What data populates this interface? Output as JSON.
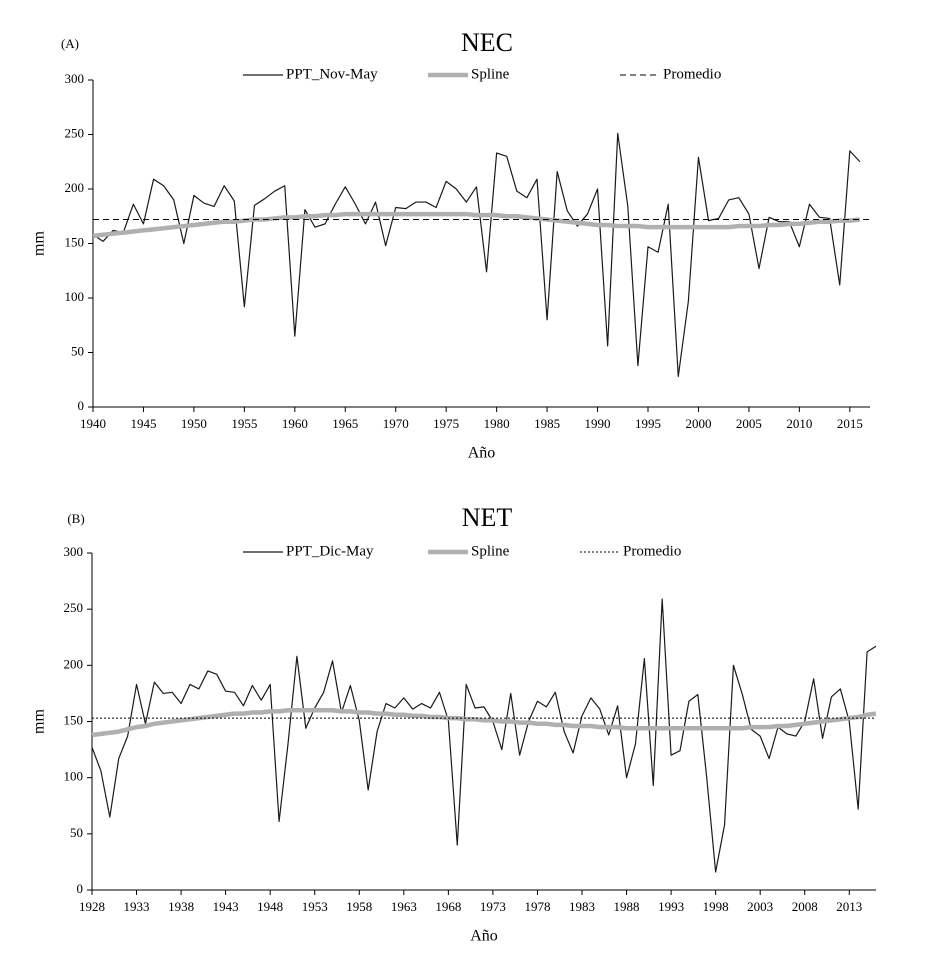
{
  "chart_data": [
    {
      "type": "line",
      "panel_label": "(A)",
      "title": "NEC",
      "xlabel": "Año",
      "ylabel": "mm",
      "x": [
        1940,
        1941,
        1942,
        1943,
        1944,
        1945,
        1946,
        1947,
        1948,
        1949,
        1950,
        1951,
        1952,
        1953,
        1954,
        1955,
        1956,
        1957,
        1958,
        1959,
        1960,
        1961,
        1962,
        1963,
        1964,
        1965,
        1966,
        1967,
        1968,
        1969,
        1970,
        1971,
        1972,
        1973,
        1974,
        1975,
        1976,
        1977,
        1978,
        1979,
        1980,
        1981,
        1982,
        1983,
        1984,
        1985,
        1986,
        1987,
        1988,
        1989,
        1990,
        1991,
        1992,
        1993,
        1994,
        1995,
        1996,
        1997,
        1998,
        1999,
        2000,
        2001,
        2002,
        2003,
        2004,
        2005,
        2006,
        2007,
        2008,
        2009,
        2010,
        2011,
        2012,
        2013,
        2014,
        2015,
        2016
      ],
      "series": [
        {
          "name": "PPT_Nov-May",
          "color": "#1a1a1a",
          "values": [
            158,
            152,
            162,
            160,
            186,
            168,
            209,
            203,
            190,
            150,
            194,
            187,
            184,
            203,
            189,
            92,
            185,
            191,
            198,
            203,
            65,
            181,
            165,
            168,
            186,
            202,
            186,
            168,
            188,
            148,
            183,
            182,
            188,
            188,
            183,
            207,
            200,
            188,
            202,
            124,
            233,
            230,
            198,
            192,
            209,
            80,
            216,
            180,
            166,
            177,
            200,
            56,
            251,
            184,
            38,
            147,
            142,
            186,
            28,
            97,
            229,
            171,
            173,
            190,
            192,
            177,
            127,
            174,
            170,
            170,
            147,
            186,
            174,
            173,
            112,
            235,
            225
          ]
        },
        {
          "name": "Spline",
          "color": "#b0b0b0",
          "values": [
            157,
            158,
            159,
            160,
            161,
            162,
            163,
            164,
            165,
            166,
            167,
            168,
            169,
            170,
            170,
            171,
            172,
            172,
            173,
            174,
            174,
            175,
            175,
            176,
            176,
            177,
            177,
            177,
            177,
            177,
            177,
            177,
            177,
            177,
            177,
            177,
            177,
            177,
            176,
            176,
            176,
            175,
            175,
            174,
            173,
            172,
            171,
            170,
            169,
            168,
            167,
            167,
            166,
            166,
            166,
            165,
            165,
            165,
            165,
            165,
            165,
            165,
            165,
            165,
            166,
            166,
            166,
            167,
            167,
            168,
            168,
            169,
            170,
            170,
            171,
            171,
            172
          ]
        },
        {
          "name": "Promedio",
          "color": "#000000",
          "dash": "dashed",
          "value": 172
        }
      ],
      "xlim": [
        1940,
        2017
      ],
      "xticks": [
        1940,
        1945,
        1950,
        1955,
        1960,
        1965,
        1970,
        1975,
        1980,
        1985,
        1990,
        1995,
        2000,
        2005,
        2010,
        2015
      ],
      "ylim": [
        0,
        300
      ],
      "yticks": [
        0,
        50,
        100,
        150,
        200,
        250,
        300
      ],
      "grid": false
    },
    {
      "type": "line",
      "panel_label": "(B)",
      "title": "NET",
      "xlabel": "Año",
      "ylabel": "mm",
      "x": [
        1928,
        1929,
        1930,
        1931,
        1932,
        1933,
        1934,
        1935,
        1936,
        1937,
        1938,
        1939,
        1940,
        1941,
        1942,
        1943,
        1944,
        1945,
        1946,
        1947,
        1948,
        1949,
        1950,
        1951,
        1952,
        1953,
        1954,
        1955,
        1956,
        1957,
        1958,
        1959,
        1960,
        1961,
        1962,
        1963,
        1964,
        1965,
        1966,
        1967,
        1968,
        1969,
        1970,
        1971,
        1972,
        1973,
        1974,
        1975,
        1976,
        1977,
        1978,
        1979,
        1980,
        1981,
        1982,
        1983,
        1984,
        1985,
        1986,
        1987,
        1988,
        1989,
        1990,
        1991,
        1992,
        1993,
        1994,
        1995,
        1996,
        1997,
        1998,
        1999,
        2000,
        2001,
        2002,
        2003,
        2004,
        2005,
        2006,
        2007,
        2008,
        2009,
        2010,
        2011,
        2012,
        2013,
        2014,
        2015,
        2016
      ],
      "series": [
        {
          "name": "PPT_Dic-May",
          "color": "#1a1a1a",
          "values": [
            127,
            106,
            65,
            117,
            137,
            183,
            148,
            185,
            175,
            176,
            166,
            183,
            179,
            195,
            192,
            177,
            176,
            164,
            182,
            169,
            183,
            61,
            130,
            208,
            144,
            162,
            176,
            204,
            158,
            182,
            151,
            89,
            141,
            166,
            162,
            171,
            161,
            166,
            162,
            176,
            151,
            40,
            183,
            162,
            163,
            150,
            125,
            175,
            120,
            150,
            168,
            163,
            176,
            141,
            122,
            155,
            171,
            161,
            138,
            164,
            100,
            130,
            206,
            93,
            259,
            120,
            124,
            168,
            174,
            100,
            16,
            58,
            200,
            174,
            143,
            137,
            117,
            145,
            139,
            137,
            150,
            188,
            135,
            172,
            179,
            150,
            72,
            212,
            217
          ]
        },
        {
          "name": "Spline",
          "color": "#b0b0b0",
          "values": [
            138,
            139,
            140,
            141,
            143,
            145,
            146,
            148,
            149,
            150,
            151,
            152,
            153,
            154,
            155,
            156,
            157,
            157,
            158,
            158,
            159,
            159,
            160,
            160,
            160,
            160,
            160,
            160,
            159,
            159,
            158,
            158,
            157,
            157,
            156,
            156,
            155,
            155,
            154,
            154,
            153,
            153,
            152,
            152,
            151,
            151,
            150,
            150,
            149,
            149,
            148,
            148,
            147,
            147,
            146,
            146,
            146,
            145,
            145,
            145,
            144,
            144,
            144,
            144,
            144,
            144,
            144,
            144,
            144,
            144,
            144,
            144,
            144,
            144,
            145,
            145,
            145,
            146,
            146,
            147,
            148,
            149,
            150,
            151,
            152,
            153,
            154,
            156,
            157
          ]
        },
        {
          "name": "Promedio",
          "color": "#000000",
          "dash": "dotted",
          "value": 153
        }
      ],
      "xlim": [
        1928,
        2016
      ],
      "xticks": [
        1928,
        1933,
        1938,
        1943,
        1948,
        1953,
        1958,
        1963,
        1968,
        1973,
        1978,
        1983,
        1988,
        1993,
        1998,
        2003,
        2008,
        2013
      ],
      "ylim": [
        0,
        300
      ],
      "yticks": [
        0,
        50,
        100,
        150,
        200,
        250,
        300
      ],
      "grid": false
    }
  ]
}
